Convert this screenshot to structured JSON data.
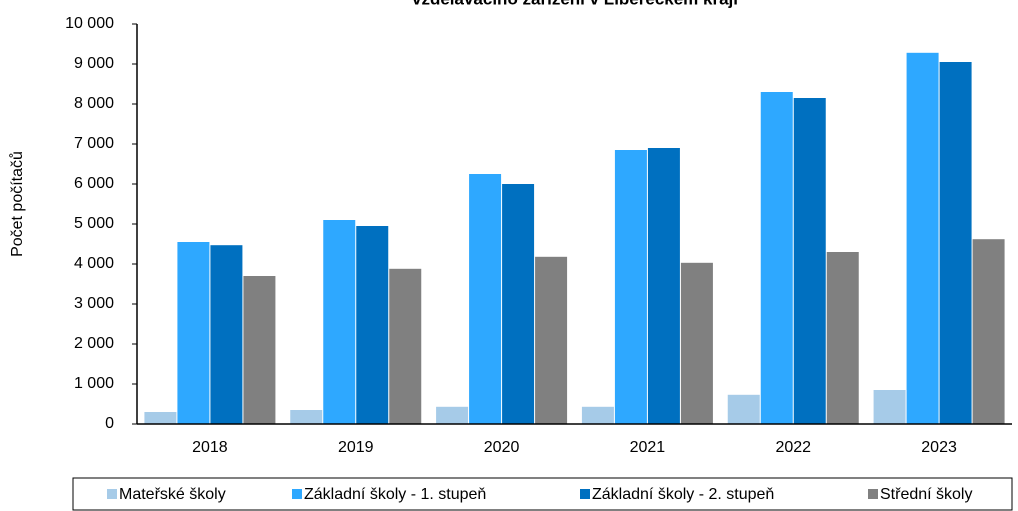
{
  "chart_data": {
    "type": "bar",
    "title": "vzdělávacího zařízení v Libereckém kraji",
    "y_label": "Počet počítačů",
    "categories": [
      "2018",
      "2019",
      "2020",
      "2021",
      "2022",
      "2023"
    ],
    "series": [
      {
        "name": "Mateřské školy",
        "color": "#a6cbe8",
        "values": [
          300,
          350,
          430,
          430,
          730,
          850
        ]
      },
      {
        "name": "Základní školy - 1. stupeň",
        "color": "#2ea8ff",
        "values": [
          4550,
          5100,
          6250,
          6850,
          8300,
          9280
        ]
      },
      {
        "name": "Základní školy - 2. stupeň",
        "color": "#0070c0",
        "values": [
          4470,
          4950,
          6000,
          6900,
          8150,
          9050
        ]
      },
      {
        "name": "Střední školy",
        "color": "#808080",
        "values": [
          3700,
          3880,
          4180,
          4030,
          4300,
          4620
        ]
      }
    ],
    "ylim": [
      0,
      10000
    ],
    "yticks": [
      0,
      {
        "value": 1000,
        "label": "1 000"
      },
      {
        "value": 2000,
        "label": "2 000"
      },
      {
        "value": 3000,
        "label": "3 000"
      },
      {
        "value": 4000,
        "label": "4 000"
      },
      {
        "value": 5000,
        "label": "5 000"
      },
      {
        "value": 6000,
        "label": "6 000"
      },
      {
        "value": 7000,
        "label": "7 000"
      },
      {
        "value": 8000,
        "label": "8 000"
      },
      {
        "value": 9000,
        "label": "9 000"
      },
      {
        "value": 10000,
        "label": "10 000"
      }
    ],
    "legend": "bottom"
  }
}
